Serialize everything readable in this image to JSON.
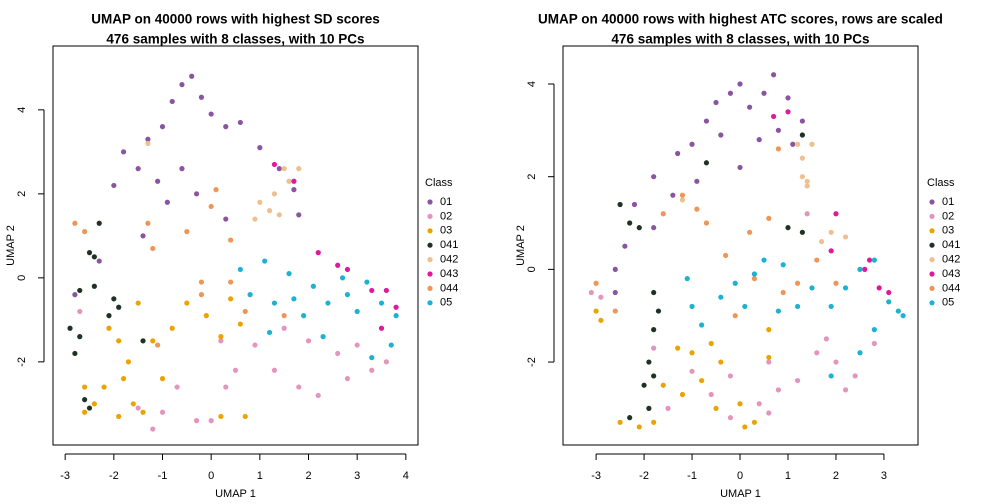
{
  "chart_data": [
    {
      "type": "scatter",
      "title": "UMAP on 40000 rows with highest SD scores",
      "subtitle": "476 samples with 8 classes, with 10 PCs",
      "xlabel": "UMAP 1",
      "ylabel": "UMAP 2",
      "legend_title": "Class",
      "xlim": [
        -3.25,
        4.25
      ],
      "ylim": [
        -3.98,
        5.52
      ],
      "xticks": [
        -3,
        -2,
        -1,
        0,
        1,
        2,
        3,
        4
      ],
      "yticks": [
        -2,
        0,
        2,
        4
      ],
      "series": [
        {
          "name": "01",
          "color": "#8a55a0",
          "x": [
            -1.5,
            -1.8,
            -1.3,
            -1,
            -0.8,
            -0.6,
            -0.4,
            -0.2,
            0,
            0.3,
            0.6,
            1,
            1.4,
            1.7,
            1.8,
            -1.1,
            -0.9,
            -2,
            -1.4,
            -2.3,
            -2.8,
            -0.3,
            0.3,
            -0.6
          ],
          "y": [
            2.6,
            3.0,
            3.3,
            3.6,
            4.2,
            4.6,
            4.8,
            4.3,
            3.9,
            3.6,
            3.7,
            3.1,
            2.6,
            2.1,
            1.5,
            2.3,
            1.8,
            2.2,
            1.0,
            0.4,
            -0.4,
            2.0,
            1.4,
            2.6
          ]
        },
        {
          "name": "02",
          "color": "#e495bd",
          "x": [
            -1.2,
            -1,
            -0.7,
            -0.3,
            0,
            0.3,
            0.5,
            0.9,
            1.3,
            1.8,
            2.2,
            2.6,
            3,
            3.3,
            1.5,
            2,
            -2.7,
            -1.5,
            3.6,
            0.2,
            2.8
          ],
          "y": [
            -3.6,
            -3.2,
            -2.6,
            -3.4,
            -3.4,
            -2.6,
            -2.2,
            -1.6,
            -2.2,
            -2.6,
            -2.8,
            -1.8,
            -1.6,
            -2.2,
            -1.2,
            -1.5,
            -0.8,
            -3.1,
            -2.0,
            -1.5,
            -2.4
          ]
        },
        {
          "name": "03",
          "color": "#eba300",
          "x": [
            -2.6,
            -2.4,
            -2.2,
            -1.8,
            -1.6,
            -1.9,
            -1.7,
            -1.4,
            -1.2,
            -1,
            -0.8,
            -0.5,
            -0.1,
            0.2,
            0.4,
            0.6,
            -2.1,
            -1.5,
            0.7,
            0.2,
            -2.6,
            -1.9
          ],
          "y": [
            -2.6,
            -3.0,
            -2.6,
            -2.4,
            -3.0,
            -1.5,
            -2.0,
            -3.2,
            -1.5,
            -2.4,
            -1.2,
            -0.6,
            -0.9,
            -1.4,
            -0.5,
            -1.1,
            -1.2,
            -0.6,
            -3.3,
            -3.3,
            -3.2,
            -3.3
          ]
        },
        {
          "name": "041",
          "color": "#1e3324",
          "x": [
            -2.9,
            -2.8,
            -2.7,
            -2.5,
            -2.4,
            -2.3,
            -2.1,
            -2,
            -1.9,
            -2.6,
            -2.5,
            -2.4,
            -1.4,
            -2.7
          ],
          "y": [
            -1.2,
            -1.8,
            -1.4,
            0.6,
            0.5,
            1.3,
            -0.9,
            -0.5,
            -0.7,
            -2.9,
            -3.1,
            -0.2,
            -1.5,
            -0.3
          ]
        },
        {
          "name": "042",
          "color": "#edc08e",
          "x": [
            1,
            1.2,
            1.4,
            1.6,
            1.8,
            1.3,
            0.9,
            1.5,
            -1.3
          ],
          "y": [
            1.8,
            1.6,
            1.5,
            2.3,
            2.6,
            2.0,
            1.4,
            2.6,
            3.2
          ]
        },
        {
          "name": "043",
          "color": "#e0189c",
          "x": [
            1.3,
            1.7,
            2.2,
            2.6,
            3.3,
            3.6,
            3.8,
            3.5,
            2.8
          ],
          "y": [
            2.7,
            2.3,
            0.6,
            0.3,
            -0.3,
            -0.3,
            -0.7,
            -1.2,
            0.2
          ]
        },
        {
          "name": "044",
          "color": "#ef9558",
          "x": [
            -2.8,
            -2.6,
            -1.3,
            -1.2,
            -0.5,
            0,
            0.1,
            -1.1,
            -0.2,
            0.7,
            1.5,
            0.4,
            -0.2,
            0.4
          ],
          "y": [
            1.3,
            1.1,
            1.3,
            0.7,
            1.1,
            1.7,
            2.1,
            -1.6,
            -0.4,
            -0.8,
            -0.9,
            -0.1,
            -0.1,
            0.9
          ]
        },
        {
          "name": "05",
          "color": "#1bb2d3",
          "x": [
            0.6,
            0.8,
            1.1,
            1.3,
            1.6,
            1.9,
            2.1,
            2.4,
            2.7,
            3,
            3.2,
            3.5,
            3.8,
            3.7,
            3.3,
            2.3,
            1.7,
            2.8,
            1.2
          ],
          "y": [
            0.2,
            -0.4,
            0.4,
            -0.6,
            0.1,
            -0.9,
            -0.2,
            -0.6,
            0.0,
            -0.8,
            -0.1,
            -0.6,
            -0.9,
            -1.6,
            -1.9,
            -1.4,
            -0.5,
            -0.4,
            -1.3
          ]
        }
      ]
    },
    {
      "type": "scatter",
      "title": "UMAP on 40000 rows with highest ATC scores, rows are scaled",
      "subtitle": "476 samples with 8 classes, with 10 PCs",
      "xlabel": "UMAP 1",
      "ylabel": "UMAP 2",
      "legend_title": "Class",
      "xlim": [
        -3.69,
        3.71
      ],
      "ylim": [
        -3.79,
        4.82
      ],
      "xticks": [
        -3,
        -2,
        -1,
        0,
        1,
        2,
        3
      ],
      "yticks": [
        -2,
        0,
        2,
        4
      ],
      "series": [
        {
          "name": "01",
          "color": "#8a55a0",
          "x": [
            -2.6,
            -2.4,
            -2.2,
            -1.8,
            -1.3,
            -1,
            -0.7,
            -0.5,
            -0.2,
            0,
            0.2,
            0.5,
            0.7,
            1,
            1.3,
            -0.4,
            0,
            0.4,
            -0.9,
            -1.4,
            -1.8,
            -2.6,
            1.1,
            0.8
          ],
          "y": [
            0.0,
            0.5,
            1.4,
            2.0,
            2.5,
            2.7,
            3.2,
            3.6,
            3.8,
            4.0,
            3.5,
            3.8,
            4.2,
            3.7,
            3.2,
            2.9,
            2.2,
            2.8,
            1.9,
            1.6,
            0.9,
            -0.5,
            2.7,
            3.0
          ]
        },
        {
          "name": "02",
          "color": "#e495bd",
          "x": [
            -1.8,
            -1.5,
            -1.0,
            -0.6,
            -0.2,
            0.4,
            0.8,
            1.2,
            1.6,
            2,
            2.4,
            2.8,
            -0.2,
            0.6,
            -2.9,
            -3.1,
            1.8,
            1.4,
            0.6,
            2.2
          ],
          "y": [
            -1.7,
            -3.0,
            -2.2,
            -2.7,
            -2.3,
            -2.9,
            -2.6,
            -2.4,
            -1.8,
            -2.0,
            -2.3,
            -1.6,
            -3.2,
            -3.1,
            -0.6,
            -0.5,
            -1.5,
            1.2,
            -2.0,
            -2.6
          ]
        },
        {
          "name": "03",
          "color": "#eba300",
          "x": [
            -3,
            -2.9,
            -2.5,
            -2.1,
            -1.6,
            -1.2,
            -0.8,
            -0.6,
            -0.4,
            0,
            0.3,
            0.6,
            0.6,
            -1.3,
            -1.8,
            -0.5,
            0.1,
            -1
          ],
          "y": [
            -0.9,
            -1.1,
            -3.3,
            -3.4,
            -2.5,
            -2.7,
            -2.4,
            -1.6,
            -2.0,
            -2.9,
            -3.3,
            -1.9,
            -1.3,
            -1.7,
            -3.3,
            -3.0,
            -3.4,
            -1.8
          ]
        },
        {
          "name": "041",
          "color": "#1e3324",
          "x": [
            -2.5,
            -2.3,
            -2.1,
            -1.8,
            -1.7,
            -1.8,
            -1.9,
            -1.8,
            -2,
            -1.9,
            -2.3,
            -0.7,
            1.0,
            1.3,
            1.3
          ],
          "y": [
            1.4,
            1.0,
            0.9,
            -0.5,
            -0.9,
            -1.3,
            -2.0,
            -2.3,
            -2.5,
            -3.0,
            -3.2,
            2.3,
            0.9,
            0.8,
            2.9
          ]
        },
        {
          "name": "042",
          "color": "#edc08e",
          "x": [
            1.2,
            1.5,
            1.3,
            1.3,
            1.4,
            1.4,
            1.9,
            1.7,
            2.2,
            -1.2
          ],
          "y": [
            2.7,
            2.7,
            2.4,
            2.0,
            1.9,
            1.8,
            0.8,
            0.6,
            0.7,
            1.5
          ]
        },
        {
          "name": "043",
          "color": "#e0189c",
          "x": [
            0.7,
            1.0,
            2.0,
            2.6,
            2.7,
            3.1,
            2.9,
            1.9
          ],
          "y": [
            3.3,
            3.4,
            1.2,
            0.0,
            0.2,
            -0.5,
            -0.4,
            0.4
          ]
        },
        {
          "name": "044",
          "color": "#ef9558",
          "x": [
            -1.6,
            -1.2,
            -0.9,
            0.8,
            0.6,
            0.2,
            -0.7,
            -0.3,
            0.3,
            0.9,
            1.6,
            1.2,
            -2.6,
            -0.1,
            2.0,
            -3.0
          ],
          "y": [
            1.2,
            1.6,
            1.3,
            2.6,
            1.1,
            0.8,
            1.0,
            0.3,
            -0.2,
            -0.5,
            0.2,
            -0.3,
            -0.9,
            -1.0,
            -0.3,
            -0.3
          ]
        },
        {
          "name": "05",
          "color": "#1bb2d3",
          "x": [
            -1,
            -0.8,
            -0.4,
            -0.1,
            0.3,
            0.5,
            0.9,
            1.2,
            1.5,
            1.9,
            2.2,
            2.5,
            2.8,
            3.1,
            3.3,
            3.4,
            2.8,
            2.5,
            1.9,
            0.8,
            -1.1,
            0.1
          ],
          "y": [
            -0.8,
            -1.2,
            -0.6,
            -0.3,
            -0.1,
            0.2,
            0.1,
            -0.8,
            -0.4,
            -0.8,
            -0.4,
            0.0,
            0.2,
            -0.7,
            -0.9,
            -1.0,
            -1.3,
            -1.8,
            -2.3,
            -0.9,
            -0.2,
            -0.8
          ]
        }
      ]
    }
  ]
}
